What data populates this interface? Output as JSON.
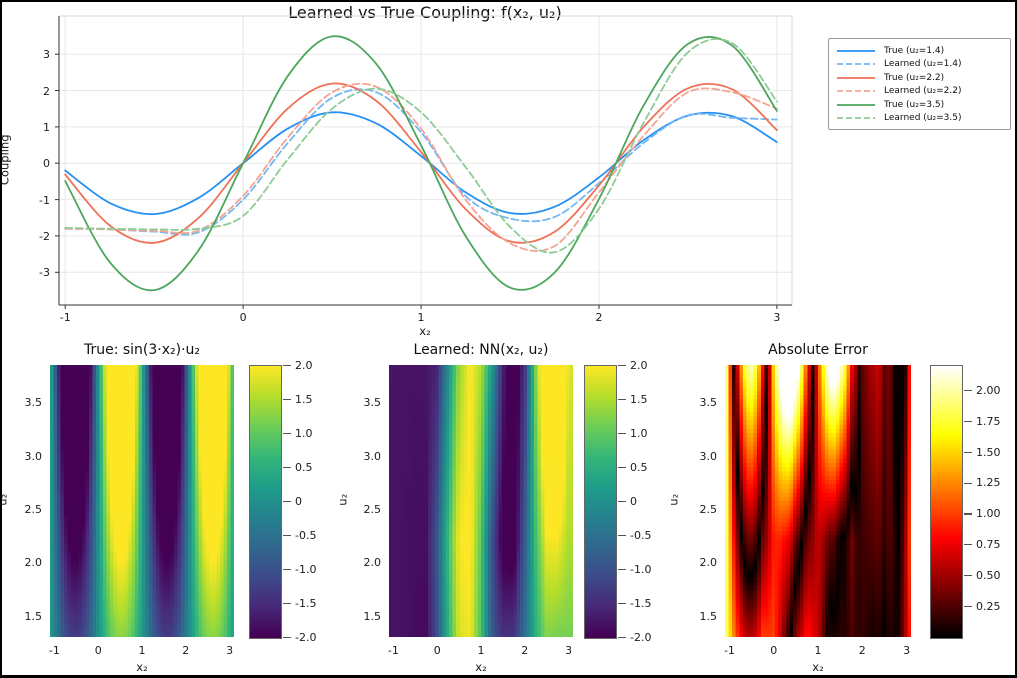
{
  "window": {
    "background": "#ffffff",
    "frame_color": "#000000"
  },
  "chart_data": [
    {
      "id": "coupling_lines",
      "type": "line",
      "title": "Learned vs True Coupling: f(x₂, u₂)",
      "xlabel": "x₂",
      "ylabel": "Coupling",
      "xlim": [
        -1.035,
        3.085
      ],
      "ylim": [
        -3.9,
        4.05
      ],
      "xticks": [
        "-1",
        "0",
        "1",
        "2",
        "3"
      ],
      "yticks": [
        "-3",
        "-2",
        "-1",
        "0",
        "1",
        "2",
        "3"
      ],
      "grid": true,
      "legend_position": "outside upper right",
      "x": [
        -1,
        -0.75,
        -0.5,
        -0.25,
        0,
        0.25,
        0.5,
        0.75,
        1,
        1.25,
        1.5,
        1.75,
        2,
        2.25,
        2.5,
        2.75,
        3
      ],
      "series": [
        {
          "name": "True (u₂=1.4)",
          "u2": 1.4,
          "style": "solid",
          "color": "#2590f2",
          "values": [
            -0.2,
            -1.09,
            -1.4,
            -0.95,
            0.0,
            0.95,
            1.4,
            1.09,
            0.2,
            -0.8,
            -1.37,
            -1.2,
            -0.39,
            0.63,
            1.31,
            1.29,
            0.58
          ]
        },
        {
          "name": "Learned (u₂=1.4)",
          "u2": 1.4,
          "style": "dashed",
          "color": "#72b8f4",
          "values": [
            -1.8,
            -1.82,
            -1.88,
            -1.9,
            -1.0,
            0.55,
            1.8,
            1.95,
            0.85,
            -0.9,
            -1.52,
            -1.48,
            -0.55,
            0.55,
            1.32,
            1.25,
            1.2
          ]
        },
        {
          "name": "True (u₂=2.2)",
          "u2": 2.2,
          "style": "solid",
          "color": "#ee7158",
          "values": [
            -0.31,
            -1.71,
            -2.19,
            -1.5,
            0.0,
            1.5,
            2.19,
            1.71,
            0.31,
            -1.26,
            -2.15,
            -1.89,
            -0.61,
            0.99,
            2.06,
            2.03,
            0.91
          ]
        },
        {
          "name": "Learned (u₂=2.2)",
          "u2": 2.2,
          "style": "dashed",
          "color": "#f4a493",
          "values": [
            -1.8,
            -1.82,
            -1.86,
            -1.85,
            -0.9,
            0.7,
            1.95,
            2.1,
            0.95,
            -1.0,
            -2.2,
            -2.28,
            -0.8,
            0.75,
            1.95,
            1.95,
            1.5
          ]
        },
        {
          "name": "True (u₂=3.5)",
          "u2": 3.5,
          "style": "solid",
          "color": "#4ca65b",
          "values": [
            -0.49,
            -2.72,
            -3.49,
            -2.39,
            0.0,
            2.39,
            3.49,
            2.72,
            0.49,
            -2.0,
            -3.42,
            -3.01,
            -0.98,
            1.58,
            3.28,
            3.23,
            1.44
          ]
        },
        {
          "name": "Learned (u₂=3.5)",
          "u2": 3.5,
          "style": "dashed",
          "color": "#8fcb96",
          "values": [
            -1.78,
            -1.8,
            -1.82,
            -1.8,
            -1.45,
            0.1,
            1.5,
            2.05,
            1.4,
            -0.1,
            -1.75,
            -2.45,
            -1.25,
            1.1,
            3.05,
            3.3,
            1.7
          ]
        }
      ]
    },
    {
      "id": "true_heatmap",
      "type": "heatmap",
      "title": "True: sin(3·x₂)·u₂",
      "xlabel": "x₂",
      "ylabel": "u₂",
      "value": "u2*sin(3*x2)",
      "x_range": [
        -1.1,
        3.1
      ],
      "u_range": [
        1.3,
        3.85
      ],
      "vmin": -2,
      "vmax": 2,
      "colormap": "viridis",
      "xticks": [
        "-1",
        "0",
        "1",
        "2",
        "3"
      ],
      "yticks": [
        "1.5",
        "2.0",
        "2.5",
        "3.0",
        "3.5"
      ],
      "colorbar_ticks": [
        "2.0",
        "1.5",
        "1.0",
        "0.5",
        "0",
        "-0.5",
        "-1.0",
        "-1.5",
        "-2.0"
      ]
    },
    {
      "id": "learned_heatmap",
      "type": "heatmap",
      "title": "Learned: NN(x₂, u₂)",
      "xlabel": "x₂",
      "ylabel": "u₂",
      "value": "NN(x2, u2)",
      "x_range": [
        -1.1,
        3.1
      ],
      "u_range": [
        1.3,
        3.85
      ],
      "vmin": -2,
      "vmax": 2,
      "colormap": "viridis",
      "xticks": [
        "-1",
        "0",
        "1",
        "2",
        "3"
      ],
      "yticks": [
        "1.5",
        "2.0",
        "2.5",
        "3.0",
        "3.5"
      ],
      "colorbar_ticks": [
        "2.0",
        "1.5",
        "1.0",
        "0.5",
        "0",
        "-0.5",
        "-1.0",
        "-1.5",
        "-2.0"
      ]
    },
    {
      "id": "error_heatmap",
      "type": "heatmap",
      "title": "Absolute Error",
      "xlabel": "x₂",
      "ylabel": "u₂",
      "value": "abs(true - learned)",
      "x_range": [
        -1.1,
        3.1
      ],
      "u_range": [
        1.3,
        3.85
      ],
      "vmin": 0,
      "vmax": 2.2,
      "colormap": "hot",
      "xticks": [
        "-1",
        "0",
        "1",
        "2",
        "3"
      ],
      "yticks": [
        "1.5",
        "2.0",
        "2.5",
        "3.0",
        "3.5"
      ],
      "colorbar_ticks": [
        "2.00",
        "1.75",
        "1.50",
        "1.25",
        "1.00",
        "0.75",
        "0.50",
        "0.25"
      ]
    }
  ]
}
